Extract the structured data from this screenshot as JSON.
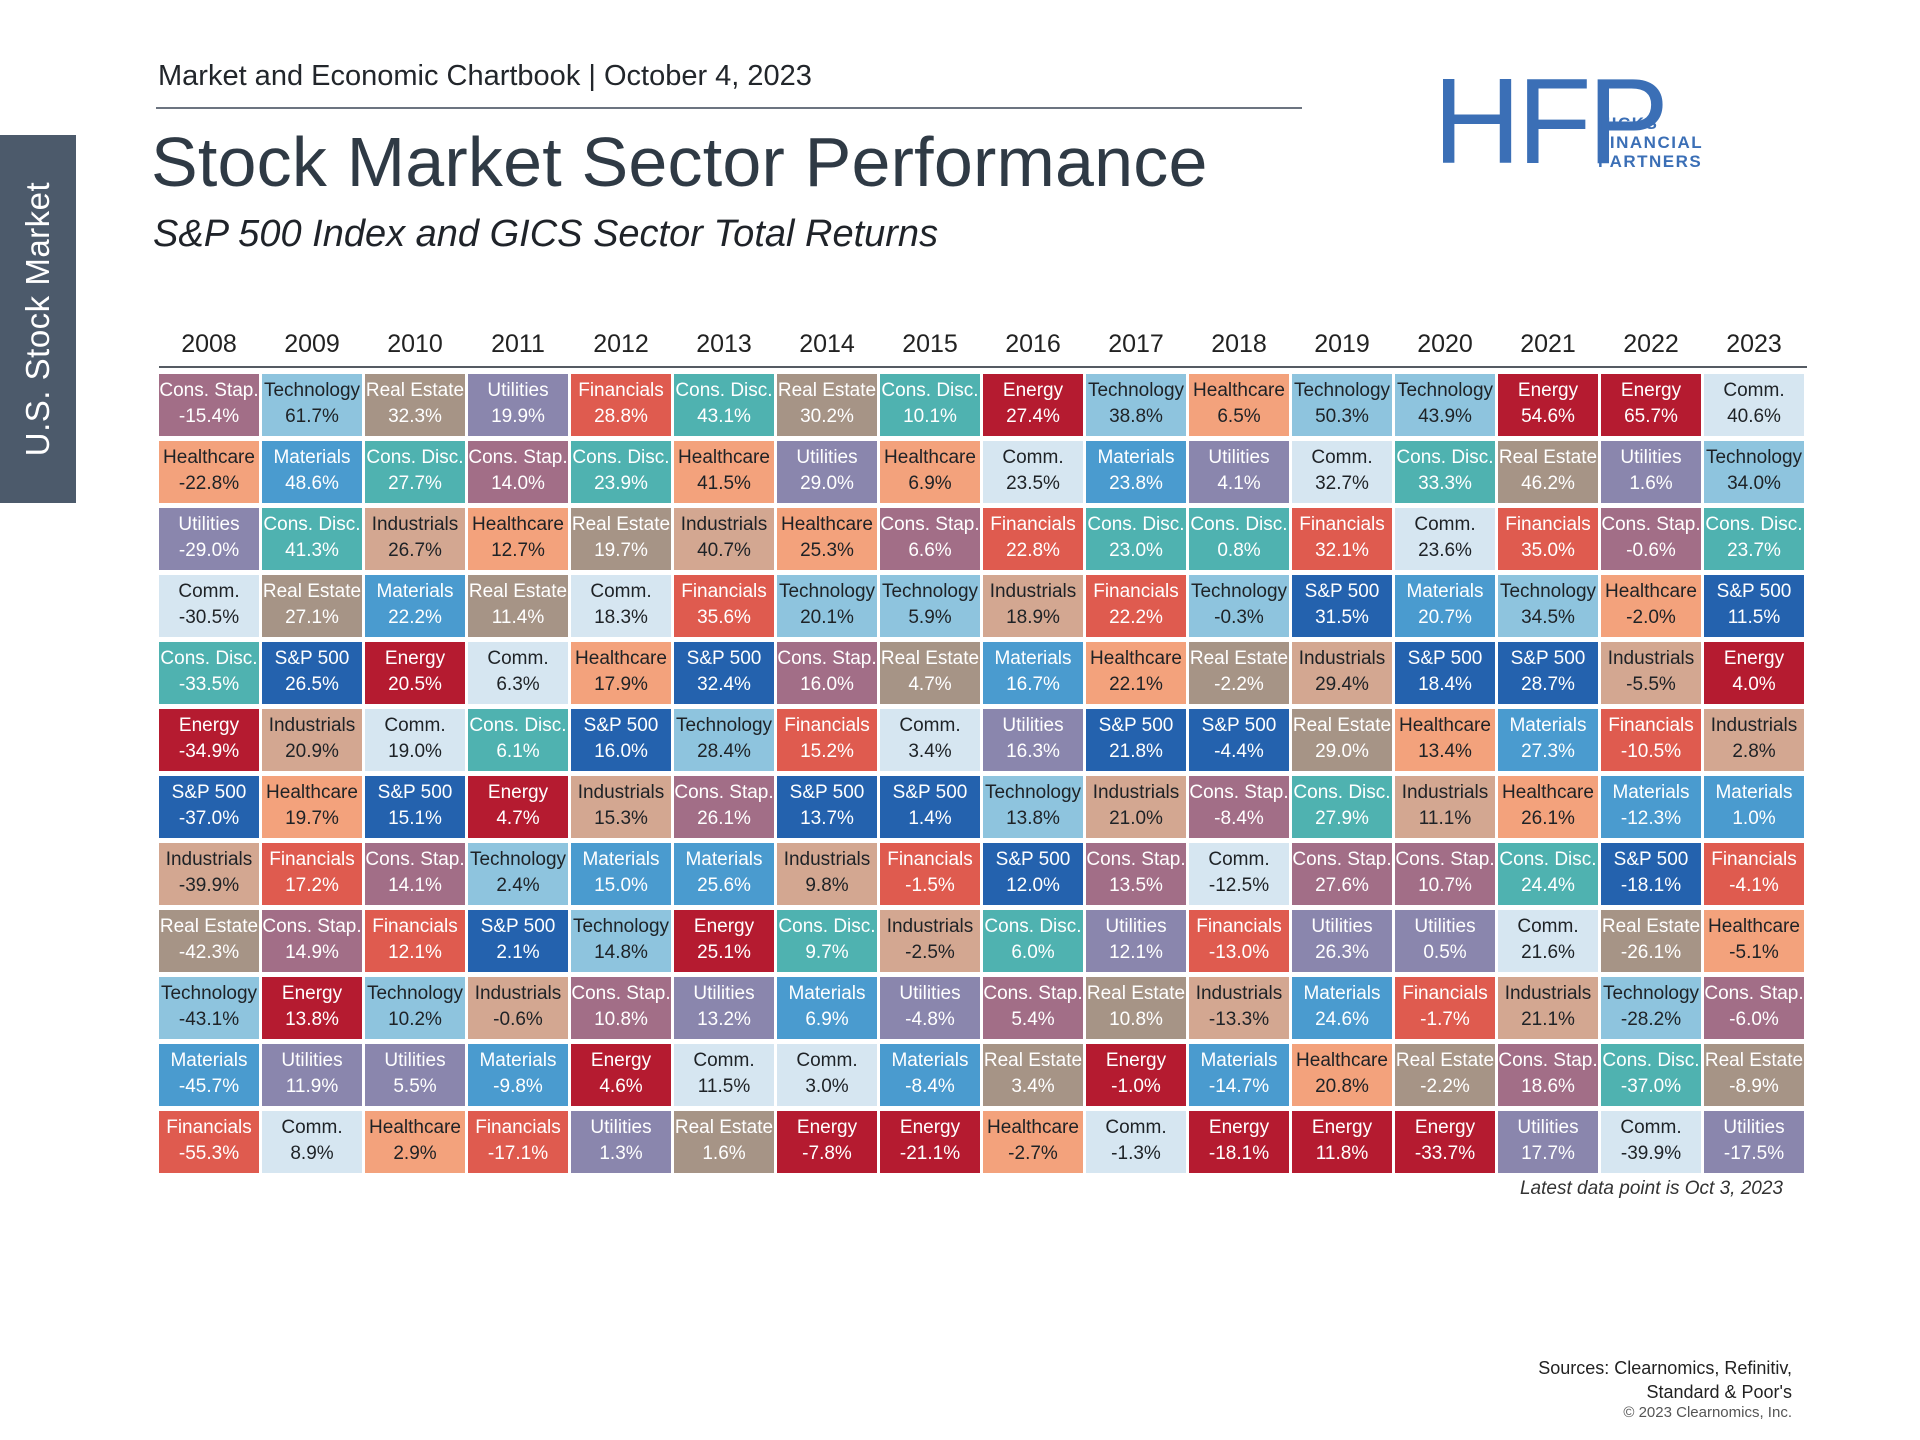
{
  "side_tab": "U.S. Stock Market",
  "header": {
    "kicker": "Market and Economic Chartbook | October 4, 2023",
    "title": "Stock Market Sector Performance",
    "subtitle": "S&P 500 Index and GICS Sector Total Returns"
  },
  "logo": {
    "mark": "HFP",
    "line1": "HICKS",
    "line2": "FINANCIAL",
    "line3": "PARTNERS"
  },
  "footnote": "Latest data point is Oct 3, 2023",
  "sources": {
    "line1": "Sources: Clearnomics, Refinitiv,",
    "line2": "Standard & Poor's",
    "copyright": "© 2023 Clearnomics, Inc."
  },
  "colors": {
    "Cons. Stap.": "#a26e87",
    "Technology": "#8ec4de",
    "Real Estate": "#a69486",
    "Utilities": "#8a86ad",
    "Financials": "#df5b4f",
    "Cons. Disc.": "#4fb2b0",
    "Energy": "#b51b30",
    "Healthcare": "#f3a27c",
    "Comm.": "#d6e6f1",
    "Materials": "#4a9bcf",
    "Industrials": "#d3a791",
    "S&P 500": "#2462ae"
  },
  "light_text": [
    "Technology",
    "Comm.",
    "Healthcare",
    "Industrials"
  ],
  "chart_data": {
    "type": "table",
    "title": "Stock Market Sector Performance",
    "years": [
      "2008",
      "2009",
      "2010",
      "2011",
      "2012",
      "2013",
      "2014",
      "2015",
      "2016",
      "2017",
      "2018",
      "2019",
      "2020",
      "2021",
      "2022",
      "2023"
    ],
    "columns": [
      [
        [
          "Cons. Stap.",
          "-15.4%"
        ],
        [
          "Healthcare",
          "-22.8%"
        ],
        [
          "Utilities",
          "-29.0%"
        ],
        [
          "Comm.",
          "-30.5%"
        ],
        [
          "Cons. Disc.",
          "-33.5%"
        ],
        [
          "Energy",
          "-34.9%"
        ],
        [
          "S&P 500",
          "-37.0%"
        ],
        [
          "Industrials",
          "-39.9%"
        ],
        [
          "Real Estate",
          "-42.3%"
        ],
        [
          "Technology",
          "-43.1%"
        ],
        [
          "Materials",
          "-45.7%"
        ],
        [
          "Financials",
          "-55.3%"
        ]
      ],
      [
        [
          "Technology",
          "61.7%"
        ],
        [
          "Materials",
          "48.6%"
        ],
        [
          "Cons. Disc.",
          "41.3%"
        ],
        [
          "Real Estate",
          "27.1%"
        ],
        [
          "S&P 500",
          "26.5%"
        ],
        [
          "Industrials",
          "20.9%"
        ],
        [
          "Healthcare",
          "19.7%"
        ],
        [
          "Financials",
          "17.2%"
        ],
        [
          "Cons. Stap.",
          "14.9%"
        ],
        [
          "Energy",
          "13.8%"
        ],
        [
          "Utilities",
          "11.9%"
        ],
        [
          "Comm.",
          "8.9%"
        ]
      ],
      [
        [
          "Real Estate",
          "32.3%"
        ],
        [
          "Cons. Disc.",
          "27.7%"
        ],
        [
          "Industrials",
          "26.7%"
        ],
        [
          "Materials",
          "22.2%"
        ],
        [
          "Energy",
          "20.5%"
        ],
        [
          "Comm.",
          "19.0%"
        ],
        [
          "S&P 500",
          "15.1%"
        ],
        [
          "Cons. Stap.",
          "14.1%"
        ],
        [
          "Financials",
          "12.1%"
        ],
        [
          "Technology",
          "10.2%"
        ],
        [
          "Utilities",
          "5.5%"
        ],
        [
          "Healthcare",
          "2.9%"
        ]
      ],
      [
        [
          "Utilities",
          "19.9%"
        ],
        [
          "Cons. Stap.",
          "14.0%"
        ],
        [
          "Healthcare",
          "12.7%"
        ],
        [
          "Real Estate",
          "11.4%"
        ],
        [
          "Comm.",
          "6.3%"
        ],
        [
          "Cons. Disc.",
          "6.1%"
        ],
        [
          "Energy",
          "4.7%"
        ],
        [
          "Technology",
          "2.4%"
        ],
        [
          "S&P 500",
          "2.1%"
        ],
        [
          "Industrials",
          "-0.6%"
        ],
        [
          "Materials",
          "-9.8%"
        ],
        [
          "Financials",
          "-17.1%"
        ]
      ],
      [
        [
          "Financials",
          "28.8%"
        ],
        [
          "Cons. Disc.",
          "23.9%"
        ],
        [
          "Real Estate",
          "19.7%"
        ],
        [
          "Comm.",
          "18.3%"
        ],
        [
          "Healthcare",
          "17.9%"
        ],
        [
          "S&P 500",
          "16.0%"
        ],
        [
          "Industrials",
          "15.3%"
        ],
        [
          "Materials",
          "15.0%"
        ],
        [
          "Technology",
          "14.8%"
        ],
        [
          "Cons. Stap.",
          "10.8%"
        ],
        [
          "Energy",
          "4.6%"
        ],
        [
          "Utilities",
          "1.3%"
        ]
      ],
      [
        [
          "Cons. Disc.",
          "43.1%"
        ],
        [
          "Healthcare",
          "41.5%"
        ],
        [
          "Industrials",
          "40.7%"
        ],
        [
          "Financials",
          "35.6%"
        ],
        [
          "S&P 500",
          "32.4%"
        ],
        [
          "Technology",
          "28.4%"
        ],
        [
          "Cons. Stap.",
          "26.1%"
        ],
        [
          "Materials",
          "25.6%"
        ],
        [
          "Energy",
          "25.1%"
        ],
        [
          "Utilities",
          "13.2%"
        ],
        [
          "Comm.",
          "11.5%"
        ],
        [
          "Real Estate",
          "1.6%"
        ]
      ],
      [
        [
          "Real Estate",
          "30.2%"
        ],
        [
          "Utilities",
          "29.0%"
        ],
        [
          "Healthcare",
          "25.3%"
        ],
        [
          "Technology",
          "20.1%"
        ],
        [
          "Cons. Stap.",
          "16.0%"
        ],
        [
          "Financials",
          "15.2%"
        ],
        [
          "S&P 500",
          "13.7%"
        ],
        [
          "Industrials",
          "9.8%"
        ],
        [
          "Cons. Disc.",
          "9.7%"
        ],
        [
          "Materials",
          "6.9%"
        ],
        [
          "Comm.",
          "3.0%"
        ],
        [
          "Energy",
          "-7.8%"
        ]
      ],
      [
        [
          "Cons. Disc.",
          "10.1%"
        ],
        [
          "Healthcare",
          "6.9%"
        ],
        [
          "Cons. Stap.",
          "6.6%"
        ],
        [
          "Technology",
          "5.9%"
        ],
        [
          "Real Estate",
          "4.7%"
        ],
        [
          "Comm.",
          "3.4%"
        ],
        [
          "S&P 500",
          "1.4%"
        ],
        [
          "Financials",
          "-1.5%"
        ],
        [
          "Industrials",
          "-2.5%"
        ],
        [
          "Utilities",
          "-4.8%"
        ],
        [
          "Materials",
          "-8.4%"
        ],
        [
          "Energy",
          "-21.1%"
        ]
      ],
      [
        [
          "Energy",
          "27.4%"
        ],
        [
          "Comm.",
          "23.5%"
        ],
        [
          "Financials",
          "22.8%"
        ],
        [
          "Industrials",
          "18.9%"
        ],
        [
          "Materials",
          "16.7%"
        ],
        [
          "Utilities",
          "16.3%"
        ],
        [
          "Technology",
          "13.8%"
        ],
        [
          "S&P 500",
          "12.0%"
        ],
        [
          "Cons. Disc.",
          "6.0%"
        ],
        [
          "Cons. Stap.",
          "5.4%"
        ],
        [
          "Real Estate",
          "3.4%"
        ],
        [
          "Healthcare",
          "-2.7%"
        ]
      ],
      [
        [
          "Technology",
          "38.8%"
        ],
        [
          "Materials",
          "23.8%"
        ],
        [
          "Cons. Disc.",
          "23.0%"
        ],
        [
          "Financials",
          "22.2%"
        ],
        [
          "Healthcare",
          "22.1%"
        ],
        [
          "S&P 500",
          "21.8%"
        ],
        [
          "Industrials",
          "21.0%"
        ],
        [
          "Cons. Stap.",
          "13.5%"
        ],
        [
          "Utilities",
          "12.1%"
        ],
        [
          "Real Estate",
          "10.8%"
        ],
        [
          "Energy",
          "-1.0%"
        ],
        [
          "Comm.",
          "-1.3%"
        ]
      ],
      [
        [
          "Healthcare",
          "6.5%"
        ],
        [
          "Utilities",
          "4.1%"
        ],
        [
          "Cons. Disc.",
          "0.8%"
        ],
        [
          "Technology",
          "-0.3%"
        ],
        [
          "Real Estate",
          "-2.2%"
        ],
        [
          "S&P 500",
          "-4.4%"
        ],
        [
          "Cons. Stap.",
          "-8.4%"
        ],
        [
          "Comm.",
          "-12.5%"
        ],
        [
          "Financials",
          "-13.0%"
        ],
        [
          "Industrials",
          "-13.3%"
        ],
        [
          "Materials",
          "-14.7%"
        ],
        [
          "Energy",
          "-18.1%"
        ]
      ],
      [
        [
          "Technology",
          "50.3%"
        ],
        [
          "Comm.",
          "32.7%"
        ],
        [
          "Financials",
          "32.1%"
        ],
        [
          "S&P 500",
          "31.5%"
        ],
        [
          "Industrials",
          "29.4%"
        ],
        [
          "Real Estate",
          "29.0%"
        ],
        [
          "Cons. Disc.",
          "27.9%"
        ],
        [
          "Cons. Stap.",
          "27.6%"
        ],
        [
          "Utilities",
          "26.3%"
        ],
        [
          "Materials",
          "24.6%"
        ],
        [
          "Healthcare",
          "20.8%"
        ],
        [
          "Energy",
          "11.8%"
        ]
      ],
      [
        [
          "Technology",
          "43.9%"
        ],
        [
          "Cons. Disc.",
          "33.3%"
        ],
        [
          "Comm.",
          "23.6%"
        ],
        [
          "Materials",
          "20.7%"
        ],
        [
          "S&P 500",
          "18.4%"
        ],
        [
          "Healthcare",
          "13.4%"
        ],
        [
          "Industrials",
          "11.1%"
        ],
        [
          "Cons. Stap.",
          "10.7%"
        ],
        [
          "Utilities",
          "0.5%"
        ],
        [
          "Financials",
          "-1.7%"
        ],
        [
          "Real Estate",
          "-2.2%"
        ],
        [
          "Energy",
          "-33.7%"
        ]
      ],
      [
        [
          "Energy",
          "54.6%"
        ],
        [
          "Real Estate",
          "46.2%"
        ],
        [
          "Financials",
          "35.0%"
        ],
        [
          "Technology",
          "34.5%"
        ],
        [
          "S&P 500",
          "28.7%"
        ],
        [
          "Materials",
          "27.3%"
        ],
        [
          "Healthcare",
          "26.1%"
        ],
        [
          "Cons. Disc.",
          "24.4%"
        ],
        [
          "Comm.",
          "21.6%"
        ],
        [
          "Industrials",
          "21.1%"
        ],
        [
          "Cons. Stap.",
          "18.6%"
        ],
        [
          "Utilities",
          "17.7%"
        ]
      ],
      [
        [
          "Energy",
          "65.7%"
        ],
        [
          "Utilities",
          "1.6%"
        ],
        [
          "Cons. Stap.",
          "-0.6%"
        ],
        [
          "Healthcare",
          "-2.0%"
        ],
        [
          "Industrials",
          "-5.5%"
        ],
        [
          "Financials",
          "-10.5%"
        ],
        [
          "Materials",
          "-12.3%"
        ],
        [
          "S&P 500",
          "-18.1%"
        ],
        [
          "Real Estate",
          "-26.1%"
        ],
        [
          "Technology",
          "-28.2%"
        ],
        [
          "Cons. Disc.",
          "-37.0%"
        ],
        [
          "Comm.",
          "-39.9%"
        ]
      ],
      [
        [
          "Comm.",
          "40.6%"
        ],
        [
          "Technology",
          "34.0%"
        ],
        [
          "Cons. Disc.",
          "23.7%"
        ],
        [
          "S&P 500",
          "11.5%"
        ],
        [
          "Energy",
          "4.0%"
        ],
        [
          "Industrials",
          "2.8%"
        ],
        [
          "Materials",
          "1.0%"
        ],
        [
          "Financials",
          "-4.1%"
        ],
        [
          "Healthcare",
          "-5.1%"
        ],
        [
          "Cons. Stap.",
          "-6.0%"
        ],
        [
          "Real Estate",
          "-8.9%"
        ],
        [
          "Utilities",
          "-17.5%"
        ]
      ]
    ]
  }
}
